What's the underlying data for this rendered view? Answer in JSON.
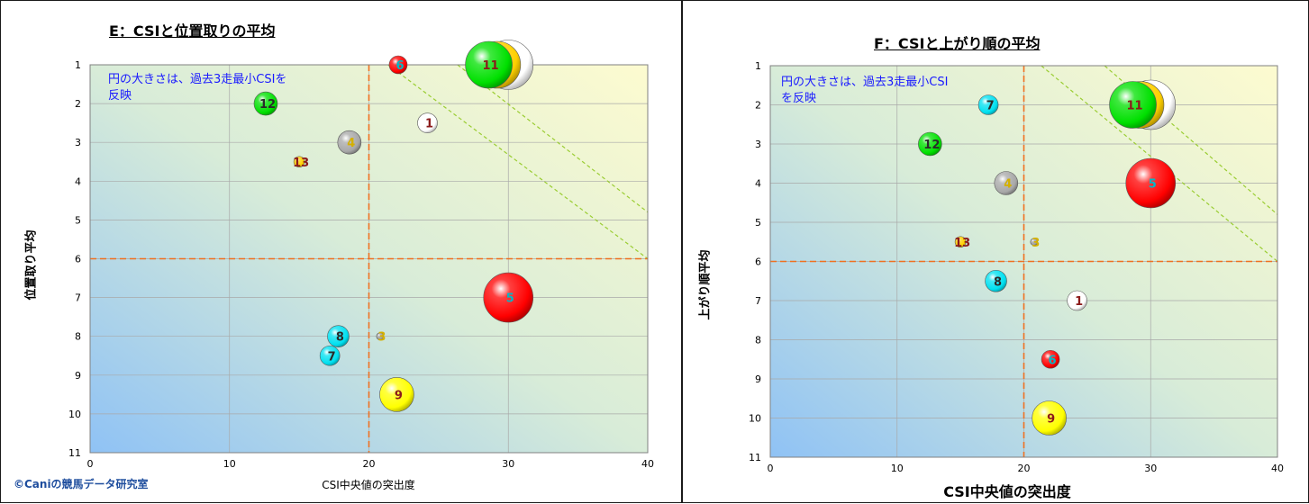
{
  "credit": "©Caniの競馬データ研究室",
  "chart_data": [
    {
      "type": "scatter",
      "title": "E：CSIと位置取りの平均",
      "xlabel": "CSI中央値の突出度",
      "ylabel": "位置取り平均",
      "note": "円の大きさは、過去3走最小CSIを\n反映",
      "xlim": [
        0,
        40
      ],
      "ylim": [
        1,
        11
      ],
      "y_inverted": true,
      "xticks": [
        "0",
        "10",
        "20",
        "30",
        "40"
      ],
      "yticks": [
        "1",
        "2",
        "3",
        "4",
        "5",
        "6",
        "7",
        "8",
        "9",
        "10",
        "11"
      ],
      "grid": true,
      "thresholds": {
        "x": 20,
        "y": 6
      },
      "points": [
        {
          "label": "1",
          "x": 24.2,
          "y": 2.5,
          "size": 22,
          "color": "#ffffff",
          "label_color": "#8b1a1a"
        },
        {
          "label": "3",
          "x": 20.8,
          "y": 8.0,
          "size": 8,
          "color": "#a0a0a0",
          "label_color": "#d4b000"
        },
        {
          "label": "4",
          "x": 18.6,
          "y": 3.0,
          "size": 26,
          "color": "#a8a8a8",
          "label_color": "#d4b000"
        },
        {
          "label": "5",
          "x": 30.0,
          "y": 7.0,
          "size": 55,
          "color": "#ff0000",
          "label_color": "#00b8c8"
        },
        {
          "label": "6",
          "x": 22.1,
          "y": 1.0,
          "size": 20,
          "color": "#ff0000",
          "label_color": "#00b8c8"
        },
        {
          "label": "7",
          "x": 17.2,
          "y": 8.5,
          "size": 22,
          "color": "#00e0f0",
          "label_color": "#2a2a2a"
        },
        {
          "label": "8",
          "x": 17.8,
          "y": 8.0,
          "size": 24,
          "color": "#00e0f0",
          "label_color": "#2a2a2a"
        },
        {
          "label": "9",
          "x": 22.0,
          "y": 9.5,
          "size": 38,
          "color": "#ffff00",
          "label_color": "#8b1a1a"
        },
        {
          "label": "10",
          "x": 30.0,
          "y": 1.0,
          "size": 55,
          "color": "#ffffff",
          "label_color": "#8b1a1a"
        },
        {
          "label": "13",
          "x": 15.0,
          "y": 3.5,
          "size": 12,
          "color": "#ffd000",
          "label_color": "#8b1a1a"
        },
        {
          "label": "2",
          "x": 29.2,
          "y": 1.0,
          "size": 52,
          "color": "#ffd000",
          "label_color": "#8b1a1a"
        },
        {
          "label": "11",
          "x": 28.6,
          "y": 1.0,
          "size": 52,
          "color": "#00e000",
          "label_color": "#8b1a1a"
        },
        {
          "label": "12",
          "x": 12.6,
          "y": 2.0,
          "size": 26,
          "color": "#00e000",
          "label_color": "#2a2a2a"
        }
      ]
    },
    {
      "type": "scatter",
      "title": "F：CSIと上がり順の平均",
      "xlabel": "CSI中央値の突出度",
      "ylabel": "上がり順平均",
      "note": "円の大きさは、過去3走最小CSI\nを反映",
      "xlim": [
        0,
        40
      ],
      "ylim": [
        1,
        11
      ],
      "y_inverted": true,
      "xticks": [
        "0",
        "10",
        "20",
        "30",
        "40"
      ],
      "yticks": [
        "1",
        "2",
        "3",
        "4",
        "5",
        "6",
        "7",
        "8",
        "9",
        "10",
        "11"
      ],
      "grid": true,
      "thresholds": {
        "x": 20,
        "y": 6
      },
      "points": [
        {
          "label": "1",
          "x": 24.2,
          "y": 7.0,
          "size": 22,
          "color": "#ffffff",
          "label_color": "#8b1a1a"
        },
        {
          "label": "3",
          "x": 20.8,
          "y": 5.5,
          "size": 8,
          "color": "#a0a0a0",
          "label_color": "#d4b000"
        },
        {
          "label": "4",
          "x": 18.6,
          "y": 4.0,
          "size": 26,
          "color": "#a8a8a8",
          "label_color": "#d4b000"
        },
        {
          "label": "5",
          "x": 30.0,
          "y": 4.0,
          "size": 55,
          "color": "#ff0000",
          "label_color": "#00b8c8"
        },
        {
          "label": "6",
          "x": 22.1,
          "y": 8.5,
          "size": 20,
          "color": "#ff0000",
          "label_color": "#00b8c8"
        },
        {
          "label": "7",
          "x": 17.2,
          "y": 2.0,
          "size": 22,
          "color": "#00e0f0",
          "label_color": "#2a2a2a"
        },
        {
          "label": "8",
          "x": 17.8,
          "y": 6.5,
          "size": 24,
          "color": "#00e0f0",
          "label_color": "#2a2a2a"
        },
        {
          "label": "9",
          "x": 22.0,
          "y": 10.0,
          "size": 38,
          "color": "#ffff00",
          "label_color": "#8b1a1a"
        },
        {
          "label": "10",
          "x": 30.0,
          "y": 2.0,
          "size": 55,
          "color": "#ffffff",
          "label_color": "#8b1a1a"
        },
        {
          "label": "13",
          "x": 15.0,
          "y": 5.5,
          "size": 12,
          "color": "#ffd000",
          "label_color": "#8b1a1a"
        },
        {
          "label": "2",
          "x": 29.2,
          "y": 2.0,
          "size": 52,
          "color": "#ffd000",
          "label_color": "#8b1a1a"
        },
        {
          "label": "11",
          "x": 28.6,
          "y": 2.0,
          "size": 52,
          "color": "#00e000",
          "label_color": "#8b1a1a"
        },
        {
          "label": "12",
          "x": 12.6,
          "y": 3.0,
          "size": 26,
          "color": "#00e000",
          "label_color": "#2a2a2a"
        }
      ]
    }
  ]
}
